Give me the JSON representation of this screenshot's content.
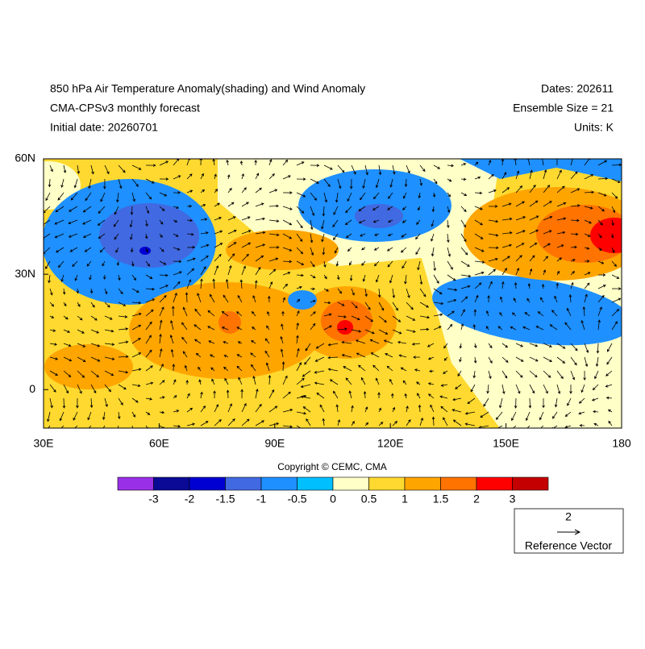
{
  "header": {
    "title": "850 hPa Air Temperature Anomaly(shading) and Wind Anomaly",
    "subtitle": "CMA-CPSv3 monthly forecast",
    "initial_date": "Initial date: 20260701",
    "dates": "Dates: 202611",
    "ensemble": "Ensemble Size = 21",
    "units": "Units: K"
  },
  "map": {
    "lonlim": [
      30,
      180
    ],
    "latlim": [
      -10,
      60
    ],
    "lon_ticks": [
      {
        "value": 30,
        "label": "30E"
      },
      {
        "value": 60,
        "label": "60E"
      },
      {
        "value": 90,
        "label": "90E"
      },
      {
        "value": 120,
        "label": "120E"
      },
      {
        "value": 150,
        "label": "150E"
      },
      {
        "value": 180,
        "label": "180"
      }
    ],
    "lat_ticks": [
      {
        "value": 60,
        "label": "60N"
      },
      {
        "value": 30,
        "label": "30N"
      },
      {
        "value": 0,
        "label": "0"
      }
    ]
  },
  "copyright": "Copyright © CEMC, CMA",
  "colorbar": {
    "colors": [
      "#9a2fe8",
      "#0a0a96",
      "#0000d2",
      "#4169e1",
      "#1e90ff",
      "#00bfff",
      "#ffffc8",
      "#ffd92f",
      "#ffa500",
      "#ff7300",
      "#ff0000",
      "#c40000"
    ],
    "labels": [
      "-3",
      "-2",
      "-1.5",
      "-1",
      "-0.5",
      "0",
      "0.5",
      "1",
      "1.5",
      "2",
      "3"
    ]
  },
  "reference_vector": {
    "magnitude": "2",
    "label": "Reference Vector"
  }
}
